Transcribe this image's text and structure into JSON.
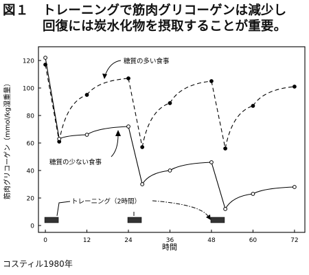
{
  "figure": {
    "number": "図１",
    "title_line1": "トレーニングで筋肉グリコーゲンは減少し",
    "title_line2": "回復には炭水化物を摂取することが重要。"
  },
  "credit": "コスティル1980年",
  "chart_data": {
    "type": "line",
    "title": "",
    "xlabel": "時間",
    "ylabel": "筋肉グリコーゲン（mmol/kg湿重量）",
    "xticks": [
      0,
      12,
      24,
      36,
      48,
      60,
      72
    ],
    "yticks": [
      0,
      20,
      40,
      60,
      80,
      100,
      120
    ],
    "xlim": [
      -2,
      75
    ],
    "ylim": [
      -5,
      130
    ],
    "grid": false,
    "series": [
      {
        "name": "糖質の多い食事",
        "style": "dashed",
        "marker": "filled",
        "x": [
          0,
          4,
          12,
          24,
          28,
          36,
          48,
          52,
          60,
          72
        ],
        "y": [
          117,
          61,
          95,
          107,
          57,
          89,
          105,
          56,
          87,
          101
        ]
      },
      {
        "name": "糖質の少ない食事",
        "style": "solid",
        "marker": "open",
        "x": [
          0,
          4,
          12,
          24,
          28,
          36,
          48,
          52,
          60,
          72
        ],
        "y": [
          122,
          63,
          66,
          72,
          30,
          40,
          46,
          12,
          23,
          28
        ]
      }
    ],
    "training": {
      "label": "トレーニング（2時間）",
      "blocks": [
        0,
        24,
        48
      ]
    }
  }
}
